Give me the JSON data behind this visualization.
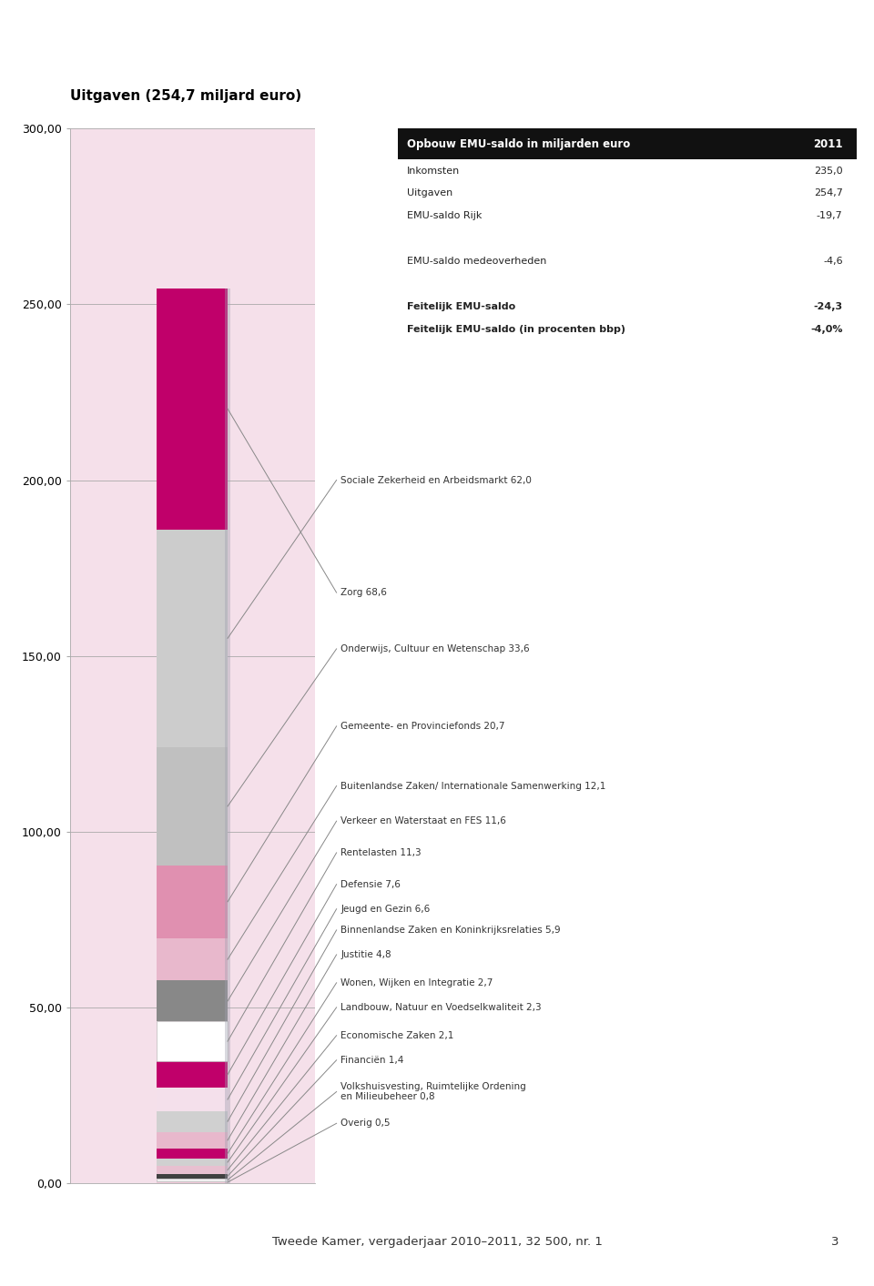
{
  "title": "Uitgaven (254,7 miljard euro)",
  "segments": [
    {
      "label": "Overig 0,5",
      "value": 0.5,
      "color": "#f0c8d8"
    },
    {
      "label": "Volkshuisvesting, Ruimtelijke Ordening\nen Milieubeheer 0,8",
      "value": 0.8,
      "color": "#f0f0f0"
    },
    {
      "label": "Financiën 1,4",
      "value": 1.4,
      "color": "#404040"
    },
    {
      "label": "Economische Zaken 2,1",
      "value": 2.1,
      "color": "#e8c0d0"
    },
    {
      "label": "Landbouw, Natuur en Voedselkwaliteit 2,3",
      "value": 2.3,
      "color": "#d0d0d0"
    },
    {
      "label": "Wonen, Wijken en Integratie 2,7",
      "value": 2.7,
      "color": "#c0006a"
    },
    {
      "label": "Justitie 4,8",
      "value": 4.8,
      "color": "#e8b8cc"
    },
    {
      "label": "Binnenlandse Zaken en Koninkrijksrelaties 5,9",
      "value": 5.9,
      "color": "#d0d0d0"
    },
    {
      "label": "Jeugd en Gezin 6,6",
      "value": 6.6,
      "color": "#f4e0eb"
    },
    {
      "label": "Defensie 7,6",
      "value": 7.6,
      "color": "#c0006a"
    },
    {
      "label": "Rentelasten 11,3",
      "value": 11.3,
      "color": "#ffffff"
    },
    {
      "label": "Verkeer en Waterstaat en FES 11,6",
      "value": 11.6,
      "color": "#888888"
    },
    {
      "label": "Buitenlandse Zaken/ Internationale Samenwerking 12,1",
      "value": 12.1,
      "color": "#e8b8cc"
    },
    {
      "label": "Gemeente- en Provinciefonds 20,7",
      "value": 20.7,
      "color": "#e090b0"
    },
    {
      "label": "Onderwijs, Cultuur en Wetenschap 33,6",
      "value": 33.6,
      "color": "#c0c0c0"
    },
    {
      "label": "Sociale Zekerheid en Arbeidsmarkt 62,0",
      "value": 62.0,
      "color": "#cccccc"
    },
    {
      "label": "Zorg 68,6",
      "value": 68.6,
      "color": "#c0006a"
    }
  ],
  "ylim": [
    0,
    300
  ],
  "yticks": [
    0,
    50,
    100,
    150,
    200,
    250,
    300
  ],
  "ytick_labels": [
    "0,00",
    "50,00",
    "100,00",
    "150,00",
    "200,00",
    "250,00",
    "300,00"
  ],
  "bg_color": "#f5e0ea",
  "table_title": "Opbouw EMU-saldo in miljarden euro",
  "table_year": "2011",
  "table_rows": [
    [
      "Inkomsten",
      "235,0",
      false
    ],
    [
      "Uitgaven",
      "254,7",
      false
    ],
    [
      "EMU-saldo Rijk",
      "-19,7",
      false
    ],
    [
      "",
      "",
      false
    ],
    [
      "EMU-saldo medeoverheden",
      "-4,6",
      false
    ],
    [
      "",
      "",
      false
    ],
    [
      "Feitelijk EMU-saldo",
      "-24,3",
      true
    ],
    [
      "Feitelijk EMU-saldo (in procenten bbp)",
      "-4,0%",
      true
    ]
  ],
  "footer": "Tweede Kamer, vergaderjaar 2010–2011, 32 500, nr. 1",
  "footer_page": "3",
  "label_positions": [
    [
      16,
      "Zorg 68,6",
      168
    ],
    [
      15,
      "Sociale Zekerheid en Arbeidsmarkt 62,0",
      200
    ],
    [
      14,
      "Onderwijs, Cultuur en Wetenschap 33,6",
      152
    ],
    [
      13,
      "Gemeente- en Provinciefonds 20,7",
      130
    ],
    [
      12,
      "Buitenlandse Zaken/ Internationale Samenwerking 12,1",
      113
    ],
    [
      11,
      "Verkeer en Waterstaat en FES 11,6",
      103
    ],
    [
      10,
      "Rentelasten 11,3",
      94
    ],
    [
      9,
      "Defensie 7,6",
      85
    ],
    [
      8,
      "Jeugd en Gezin 6,6",
      78
    ],
    [
      7,
      "Binnenlandse Zaken en Koninkrijksrelaties 5,9",
      72
    ],
    [
      6,
      "Justitie 4,8",
      65
    ],
    [
      5,
      "Wonen, Wijken en Integratie 2,7",
      57
    ],
    [
      4,
      "Landbouw, Natuur en Voedselkwaliteit 2,3",
      50
    ],
    [
      3,
      "Economische Zaken 2,1",
      42
    ],
    [
      2,
      "Financiën 1,4",
      35
    ],
    [
      1,
      "Volkshuisvesting, Ruimtelijke Ordening\nen Milieubeheer 0,8",
      26
    ],
    [
      0,
      "Overig 0,5",
      17
    ]
  ]
}
